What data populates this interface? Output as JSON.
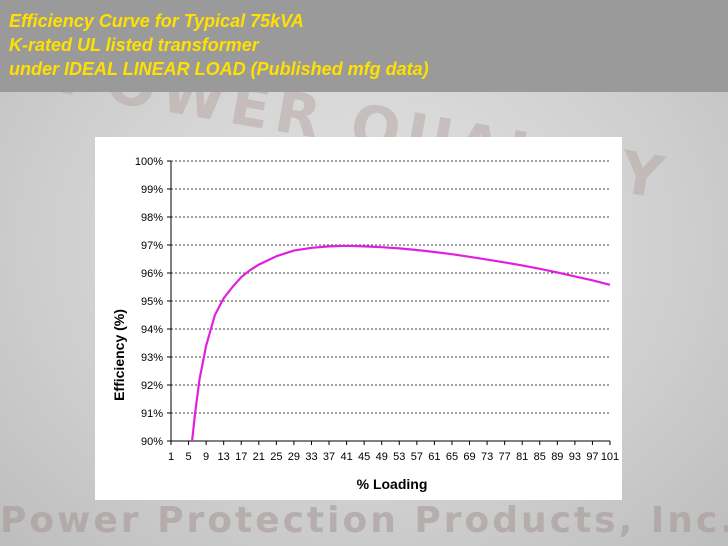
{
  "slide": {
    "title_lines": [
      "Efficiency Curve for Typical 75kVA",
      "K-rated UL listed transformer",
      "under IDEAL LINEAR LOAD (Published mfg data)"
    ],
    "watermark_top": "POWER QUALITY",
    "watermark_bottom": "Power Protection Products, Inc."
  },
  "colors": {
    "title_text": "#ffe000",
    "title_band": "#9a9a9a",
    "series_line": "#e020e0",
    "gridline": "#000000"
  },
  "chart_data": {
    "type": "line",
    "title": "",
    "xlabel": "% Loading",
    "ylabel": "Efficiency (%)",
    "x_tick_labels": [
      "1",
      "5",
      "9",
      "13",
      "17",
      "21",
      "25",
      "29",
      "33",
      "37",
      "41",
      "45",
      "49",
      "53",
      "57",
      "61",
      "65",
      "69",
      "73",
      "77",
      "81",
      "85",
      "89",
      "93",
      "97",
      "101"
    ],
    "y_tick_labels": [
      "90%",
      "91%",
      "92%",
      "93%",
      "94%",
      "95%",
      "96%",
      "97%",
      "98%",
      "99%",
      "100%"
    ],
    "xlim": [
      1,
      101
    ],
    "ylim": [
      90,
      100
    ],
    "grid": "horizontal dashed",
    "legend": "none",
    "series": [
      {
        "x": [
          5.8,
          6.5,
          7.5,
          9,
          11,
          13,
          15,
          17,
          19,
          21,
          25,
          29,
          33,
          37,
          41,
          45,
          49,
          53,
          57,
          61,
          65,
          69,
          73,
          77,
          81,
          85,
          89,
          93,
          97,
          101
        ],
        "y": [
          90.0,
          91.0,
          92.2,
          93.4,
          94.5,
          95.1,
          95.5,
          95.85,
          96.1,
          96.3,
          96.6,
          96.8,
          96.9,
          96.95,
          96.97,
          96.95,
          96.92,
          96.88,
          96.82,
          96.75,
          96.67,
          96.58,
          96.48,
          96.38,
          96.27,
          96.15,
          96.02,
          95.88,
          95.74,
          95.58
        ]
      }
    ]
  }
}
